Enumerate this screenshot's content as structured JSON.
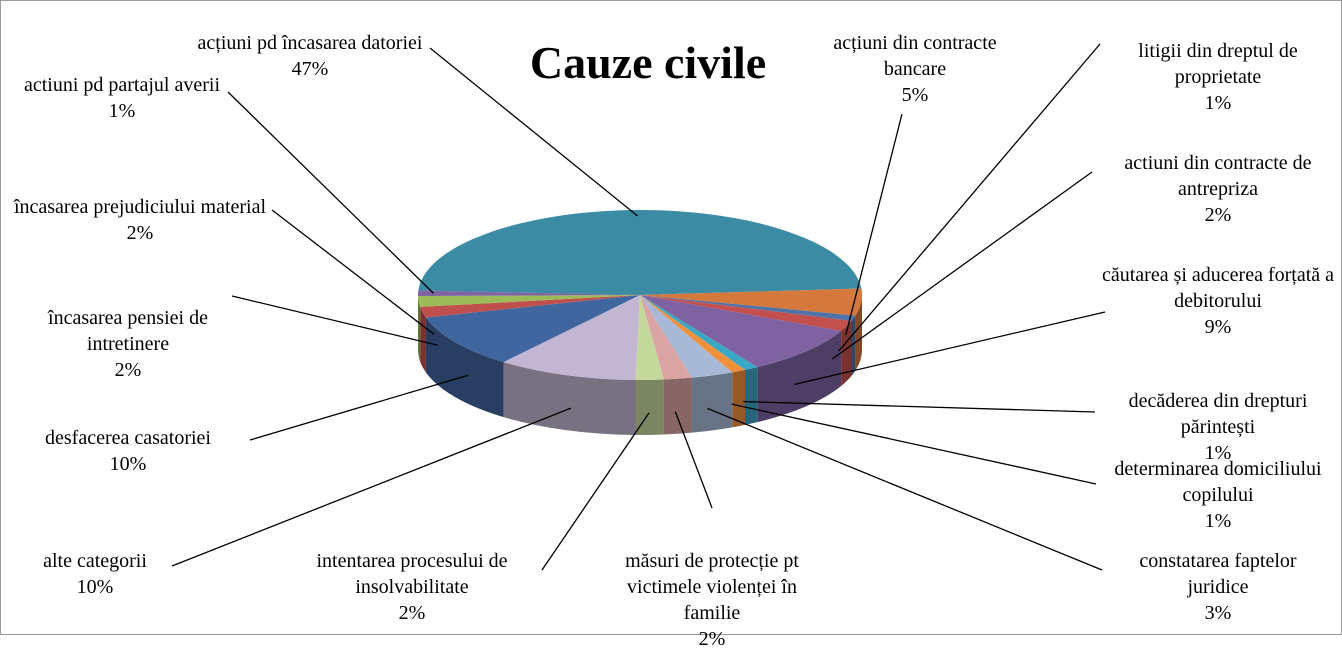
{
  "chart_data": {
    "type": "pie",
    "title": "Cauze civile",
    "categories": [
      "acțiuni pd încasarea datoriei",
      "acțiuni din contracte bancare",
      "litigii din dreptul de proprietate",
      "actiuni din contracte de antrepriza",
      "căutarea și aducerea forțată a debitorului",
      "decăderea din drepturi părintești",
      "determinarea domiciliului copilului",
      "constatarea faptelor juridice",
      "măsuri de protecție pt victimele violenței în familie",
      "intentarea procesului de insolvabilitate",
      "alte categorii",
      "desfacerea casatoriei",
      "încasarea pensiei de intretinere",
      "încasarea prejudiciului material",
      "actiuni pd partajul averii"
    ],
    "values": [
      47,
      5,
      1,
      2,
      9,
      1,
      1,
      3,
      2,
      2,
      10,
      10,
      2,
      2,
      1
    ],
    "value_labels": [
      "47%",
      "5%",
      "1%",
      "2%",
      "9%",
      "1%",
      "1%",
      "3%",
      "2%",
      "2%",
      "10%",
      "10%",
      "2%",
      "2%",
      "1%"
    ],
    "colors": [
      "#3b8ba4",
      "#d4783b",
      "#4f72a8",
      "#c4504d",
      "#7e62a1",
      "#3aa7c5",
      "#f0903b",
      "#a8b9d8",
      "#d9a4a3",
      "#c4d89c",
      "#c2b6d2",
      "#40669f",
      "#c0504d",
      "#9bbb59",
      "#7f63a2"
    ]
  }
}
